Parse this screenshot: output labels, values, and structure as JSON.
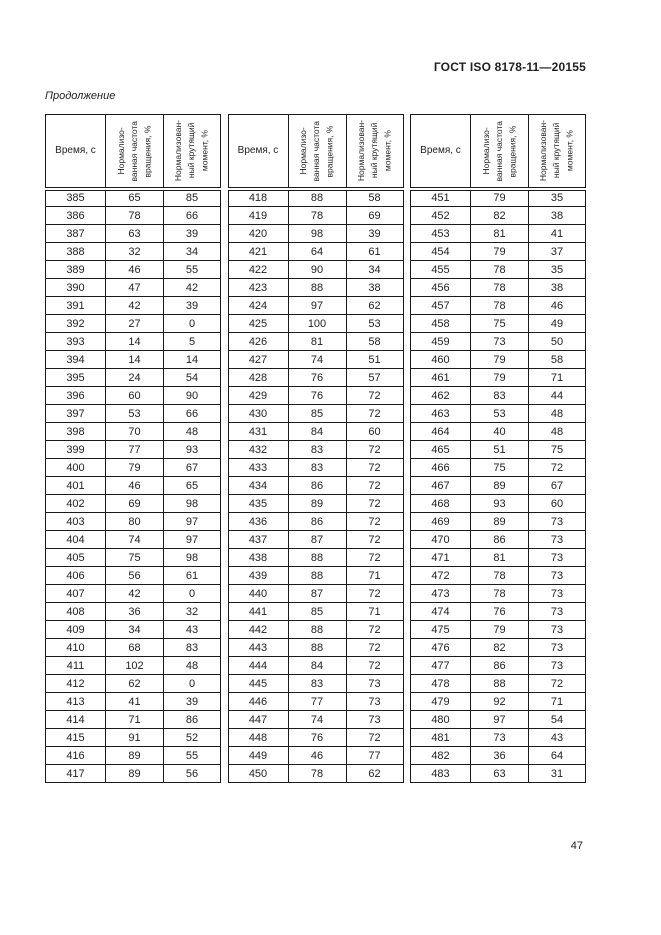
{
  "header": {
    "title": "ГОСТ ISO 8178-11—20155"
  },
  "continuation_label": "Продолжение",
  "page_number": "47",
  "column_headers": {
    "time": "Время, с",
    "speed": "Нормализо-\nванная частота\nвращения, %",
    "torque": "Нормализован-\nный крутящий\nмомент, %"
  },
  "tables": [
    {
      "rows": [
        [
          385,
          65,
          85
        ],
        [
          386,
          78,
          66
        ],
        [
          387,
          63,
          39
        ],
        [
          388,
          32,
          34
        ],
        [
          389,
          46,
          55
        ],
        [
          390,
          47,
          42
        ],
        [
          391,
          42,
          39
        ],
        [
          392,
          27,
          0
        ],
        [
          393,
          14,
          5
        ],
        [
          394,
          14,
          14
        ],
        [
          395,
          24,
          54
        ],
        [
          396,
          60,
          90
        ],
        [
          397,
          53,
          66
        ],
        [
          398,
          70,
          48
        ],
        [
          399,
          77,
          93
        ],
        [
          400,
          79,
          67
        ],
        [
          401,
          46,
          65
        ],
        [
          402,
          69,
          98
        ],
        [
          403,
          80,
          97
        ],
        [
          404,
          74,
          97
        ],
        [
          405,
          75,
          98
        ],
        [
          406,
          56,
          61
        ],
        [
          407,
          42,
          0
        ],
        [
          408,
          36,
          32
        ],
        [
          409,
          34,
          43
        ],
        [
          410,
          68,
          83
        ],
        [
          411,
          102,
          48
        ],
        [
          412,
          62,
          0
        ],
        [
          413,
          41,
          39
        ],
        [
          414,
          71,
          86
        ],
        [
          415,
          91,
          52
        ],
        [
          416,
          89,
          55
        ],
        [
          417,
          89,
          56
        ]
      ]
    },
    {
      "rows": [
        [
          418,
          88,
          58
        ],
        [
          419,
          78,
          69
        ],
        [
          420,
          98,
          39
        ],
        [
          421,
          64,
          61
        ],
        [
          422,
          90,
          34
        ],
        [
          423,
          88,
          38
        ],
        [
          424,
          97,
          62
        ],
        [
          425,
          100,
          53
        ],
        [
          426,
          81,
          58
        ],
        [
          427,
          74,
          51
        ],
        [
          428,
          76,
          57
        ],
        [
          429,
          76,
          72
        ],
        [
          430,
          85,
          72
        ],
        [
          431,
          84,
          60
        ],
        [
          432,
          83,
          72
        ],
        [
          433,
          83,
          72
        ],
        [
          434,
          86,
          72
        ],
        [
          435,
          89,
          72
        ],
        [
          436,
          86,
          72
        ],
        [
          437,
          87,
          72
        ],
        [
          438,
          88,
          72
        ],
        [
          439,
          88,
          71
        ],
        [
          440,
          87,
          72
        ],
        [
          441,
          85,
          71
        ],
        [
          442,
          88,
          72
        ],
        [
          443,
          88,
          72
        ],
        [
          444,
          84,
          72
        ],
        [
          445,
          83,
          73
        ],
        [
          446,
          77,
          73
        ],
        [
          447,
          74,
          73
        ],
        [
          448,
          76,
          72
        ],
        [
          449,
          46,
          77
        ],
        [
          450,
          78,
          62
        ]
      ]
    },
    {
      "rows": [
        [
          451,
          79,
          35
        ],
        [
          452,
          82,
          38
        ],
        [
          453,
          81,
          41
        ],
        [
          454,
          79,
          37
        ],
        [
          455,
          78,
          35
        ],
        [
          456,
          78,
          38
        ],
        [
          457,
          78,
          46
        ],
        [
          458,
          75,
          49
        ],
        [
          459,
          73,
          50
        ],
        [
          460,
          79,
          58
        ],
        [
          461,
          79,
          71
        ],
        [
          462,
          83,
          44
        ],
        [
          463,
          53,
          48
        ],
        [
          464,
          40,
          48
        ],
        [
          465,
          51,
          75
        ],
        [
          466,
          75,
          72
        ],
        [
          467,
          89,
          67
        ],
        [
          468,
          93,
          60
        ],
        [
          469,
          89,
          73
        ],
        [
          470,
          86,
          73
        ],
        [
          471,
          81,
          73
        ],
        [
          472,
          78,
          73
        ],
        [
          473,
          78,
          73
        ],
        [
          474,
          76,
          73
        ],
        [
          475,
          79,
          73
        ],
        [
          476,
          82,
          73
        ],
        [
          477,
          86,
          73
        ],
        [
          478,
          88,
          72
        ],
        [
          479,
          92,
          71
        ],
        [
          480,
          97,
          54
        ],
        [
          481,
          73,
          43
        ],
        [
          482,
          36,
          64
        ],
        [
          483,
          63,
          31
        ]
      ]
    }
  ]
}
